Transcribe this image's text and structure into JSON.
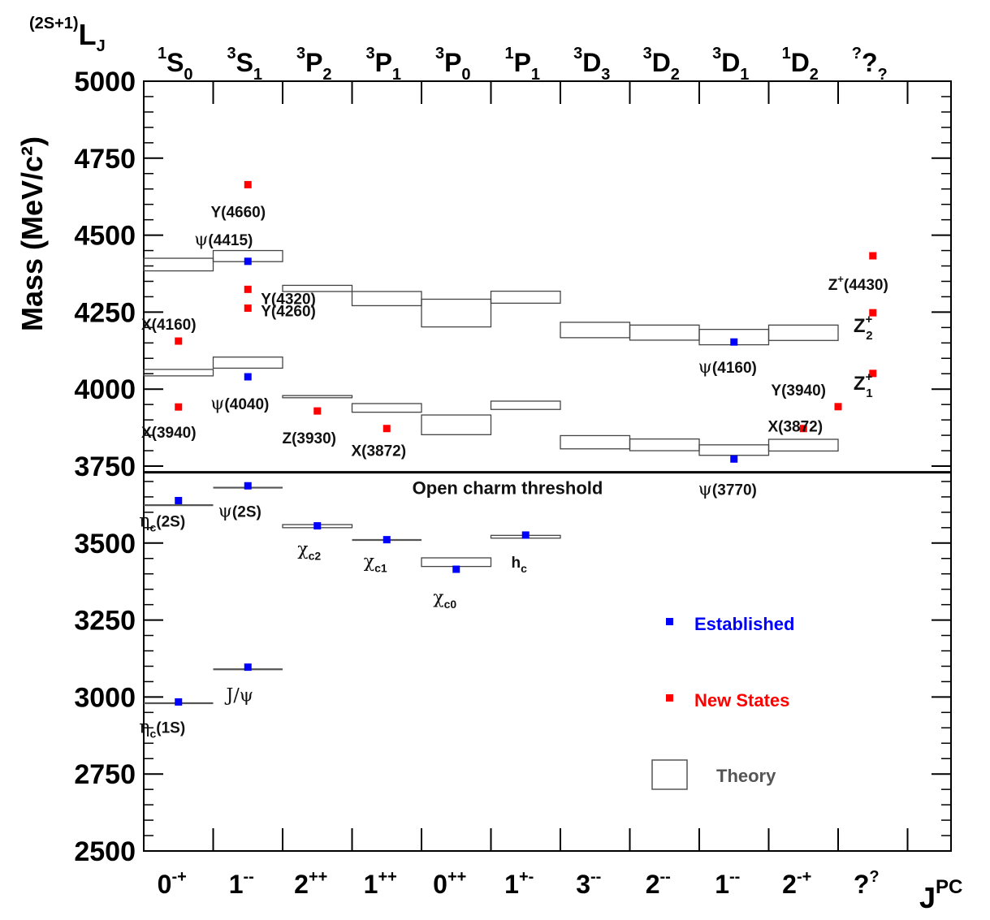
{
  "chart_data": {
    "type": "scatter",
    "ylabel": "Mass (MeV/c²)",
    "ylim": [
      2500,
      5000
    ],
    "yticks": [
      2500,
      2750,
      3000,
      3250,
      3500,
      3750,
      4000,
      4250,
      4500,
      4750,
      5000
    ],
    "top_axis_title": "(2S+1)LJ",
    "bottom_axis_title": "JPC",
    "categories": [
      {
        "jpc_base": "0",
        "jpc_sup": "-+",
        "term_pre": "1",
        "term_l": "S",
        "term_sub": "0"
      },
      {
        "jpc_base": "1",
        "jpc_sup": "--",
        "term_pre": "3",
        "term_l": "S",
        "term_sub": "1"
      },
      {
        "jpc_base": "2",
        "jpc_sup": "++",
        "term_pre": "3",
        "term_l": "P",
        "term_sub": "2"
      },
      {
        "jpc_base": "1",
        "jpc_sup": "++",
        "term_pre": "3",
        "term_l": "P",
        "term_sub": "1"
      },
      {
        "jpc_base": "0",
        "jpc_sup": "++",
        "term_pre": "3",
        "term_l": "P",
        "term_sub": "0"
      },
      {
        "jpc_base": "1",
        "jpc_sup": "+-",
        "term_pre": "1",
        "term_l": "P",
        "term_sub": "1"
      },
      {
        "jpc_base": "3",
        "jpc_sup": "--",
        "term_pre": "3",
        "term_l": "D",
        "term_sub": "3"
      },
      {
        "jpc_base": "2",
        "jpc_sup": "--",
        "term_pre": "3",
        "term_l": "D",
        "term_sub": "2"
      },
      {
        "jpc_base": "1",
        "jpc_sup": "--",
        "term_pre": "3",
        "term_l": "D",
        "term_sub": "1"
      },
      {
        "jpc_base": "2",
        "jpc_sup": "-+",
        "term_pre": "1",
        "term_l": "D",
        "term_sub": "2"
      },
      {
        "jpc_base": "?",
        "jpc_sup": "?",
        "term_pre": "?",
        "term_l": "?",
        "term_sub": "?"
      }
    ],
    "threshold": {
      "mass": 3730,
      "label": "Open charm threshold"
    },
    "series": [
      {
        "name": "Established",
        "color": "#0000ff",
        "points": [
          {
            "x": 0,
            "y": 2984,
            "label": [
              "η",
              "c",
              "(1S)"
            ]
          },
          {
            "x": 0,
            "y": 3638,
            "label": [
              "η",
              "c",
              "(2S)"
            ]
          },
          {
            "x": 1,
            "y": 3097,
            "label": [
              "J/ψ",
              "",
              ""
            ]
          },
          {
            "x": 1,
            "y": 3686,
            "label": [
              "ψ",
              "",
              "(2S)"
            ]
          },
          {
            "x": 1,
            "y": 4040,
            "label": [
              "ψ",
              "",
              "(4040)"
            ]
          },
          {
            "x": 1,
            "y": 4415,
            "label": [
              "ψ",
              "",
              "(4415)"
            ]
          },
          {
            "x": 2,
            "y": 3556,
            "label": [
              "χ",
              "c2",
              ""
            ]
          },
          {
            "x": 3,
            "y": 3511,
            "label": [
              "χ",
              "c1",
              ""
            ]
          },
          {
            "x": 4,
            "y": 3415,
            "label": [
              "χ",
              "c0",
              ""
            ]
          },
          {
            "x": 5,
            "y": 3526,
            "label": [
              "h",
              "c",
              ""
            ]
          },
          {
            "x": 8,
            "y": 3773,
            "label": [
              "ψ",
              "",
              "(3770)"
            ]
          },
          {
            "x": 8,
            "y": 4153,
            "label": [
              "ψ",
              "",
              "(4160)"
            ]
          }
        ]
      },
      {
        "name": "New States",
        "color": "#ff0000",
        "points": [
          {
            "x": 0,
            "y": 3942,
            "label": [
              "X(3940)",
              "",
              ""
            ]
          },
          {
            "x": 0,
            "y": 4156,
            "label": [
              "X(4160)",
              "",
              ""
            ]
          },
          {
            "x": 1,
            "y": 4263,
            "label": [
              "Y(4260)",
              "",
              ""
            ]
          },
          {
            "x": 1,
            "y": 4324,
            "label": [
              "Y(4320)",
              "",
              ""
            ]
          },
          {
            "x": 1,
            "y": 4664,
            "label": [
              "Y(4660)",
              "",
              ""
            ]
          },
          {
            "x": 2,
            "y": 3929,
            "label": [
              "Z(3930)",
              "",
              ""
            ]
          },
          {
            "x": 3,
            "y": 3872,
            "label": [
              "X(3872)",
              "",
              ""
            ]
          },
          {
            "x": 9,
            "y": 3872,
            "label": [
              "X(3872)",
              "",
              ""
            ]
          },
          {
            "x": 9.5,
            "y": 3943,
            "label": [
              "Y(3940)",
              "",
              ""
            ]
          },
          {
            "x": 10,
            "y": 4051,
            "label": [
              "Z",
              "1",
              "+"
            ]
          },
          {
            "x": 10,
            "y": 4248,
            "label": [
              "Z",
              "2",
              "+"
            ]
          },
          {
            "x": 10,
            "y": 4433,
            "label": [
              "Z",
              "+",
              "(4430)"
            ]
          }
        ]
      }
    ],
    "theory": [
      {
        "x0": 0,
        "x1": 1,
        "y0": 2980,
        "y1": 2980
      },
      {
        "x0": 0,
        "x1": 1,
        "y0": 3623,
        "y1": 3623
      },
      {
        "x0": 0,
        "x1": 1,
        "y0": 4043,
        "y1": 4064
      },
      {
        "x0": 0,
        "x1": 1,
        "y0": 4384,
        "y1": 4425
      },
      {
        "x0": 1,
        "x1": 2,
        "y0": 3090,
        "y1": 3090
      },
      {
        "x0": 1,
        "x1": 2,
        "y0": 3680,
        "y1": 3680
      },
      {
        "x0": 1,
        "x1": 2,
        "y0": 4068,
        "y1": 4104
      },
      {
        "x0": 1,
        "x1": 2,
        "y0": 4414,
        "y1": 4450
      },
      {
        "x0": 2,
        "x1": 3,
        "y0": 3550,
        "y1": 3560
      },
      {
        "x0": 2,
        "x1": 3,
        "y0": 3972,
        "y1": 3979
      },
      {
        "x0": 2,
        "x1": 3,
        "y0": 4317,
        "y1": 4337
      },
      {
        "x0": 3,
        "x1": 4,
        "y0": 3510,
        "y1": 3510
      },
      {
        "x0": 3,
        "x1": 4,
        "y0": 3925,
        "y1": 3953
      },
      {
        "x0": 3,
        "x1": 4,
        "y0": 4271,
        "y1": 4317
      },
      {
        "x0": 4,
        "x1": 5,
        "y0": 3424,
        "y1": 3452
      },
      {
        "x0": 4,
        "x1": 5,
        "y0": 3852,
        "y1": 3916
      },
      {
        "x0": 4,
        "x1": 5,
        "y0": 4202,
        "y1": 4292
      },
      {
        "x0": 5,
        "x1": 6,
        "y0": 3516,
        "y1": 3525
      },
      {
        "x0": 5,
        "x1": 6,
        "y0": 3934,
        "y1": 3961
      },
      {
        "x0": 5,
        "x1": 6,
        "y0": 4279,
        "y1": 4318
      },
      {
        "x0": 6,
        "x1": 7,
        "y0": 3806,
        "y1": 3849
      },
      {
        "x0": 6,
        "x1": 7,
        "y0": 4167,
        "y1": 4217
      },
      {
        "x0": 7,
        "x1": 8,
        "y0": 3800,
        "y1": 3838
      },
      {
        "x0": 7,
        "x1": 8,
        "y0": 4159,
        "y1": 4208
      },
      {
        "x0": 8,
        "x1": 9,
        "y0": 3785,
        "y1": 3819
      },
      {
        "x0": 8,
        "x1": 9,
        "y0": 4144,
        "y1": 4194
      },
      {
        "x0": 9,
        "x1": 10,
        "y0": 3799,
        "y1": 3837
      },
      {
        "x0": 9,
        "x1": 10,
        "y0": 4158,
        "y1": 4208
      }
    ],
    "legend": {
      "established": "Established",
      "new_states": "New States",
      "theory": "Theory",
      "established_color": "#0000ff",
      "new_states_color": "#ff0000",
      "theory_color": "#555555"
    },
    "grid": false
  }
}
